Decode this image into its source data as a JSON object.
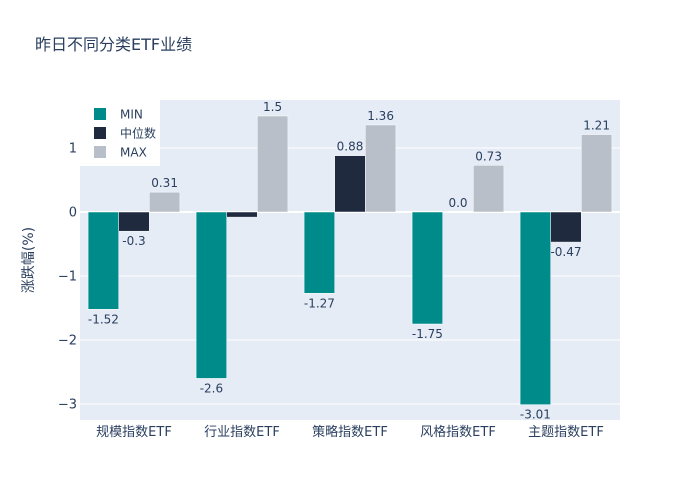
{
  "chart_data": {
    "type": "bar",
    "title": "昨日不同分类ETF业绩",
    "xlabel": "",
    "ylabel": "涨跌幅(%)",
    "categories": [
      "规模指数ETF",
      "行业指数ETF",
      "策略指数ETF",
      "风格指数ETF",
      "主题指数ETF"
    ],
    "series": [
      {
        "name": "MIN",
        "values": [
          -1.52,
          -2.6,
          -1.27,
          -1.75,
          -3.01
        ],
        "labels": [
          "-1.52",
          "-2.6",
          "-1.27",
          "-1.75",
          "-3.01"
        ],
        "color": "#008B8B"
      },
      {
        "name": "中位数",
        "values": [
          -0.3,
          -0.08,
          0.88,
          0.0,
          -0.47
        ],
        "labels": [
          "-0.3",
          "",
          "0.88",
          "0.0",
          "-0.47"
        ],
        "color": "#1F2A3E"
      },
      {
        "name": "MAX",
        "values": [
          0.31,
          1.5,
          1.36,
          0.73,
          1.21
        ],
        "labels": [
          "0.31",
          "1.5",
          "1.36",
          "0.73",
          "1.21"
        ],
        "color": "#B8BFC8"
      }
    ],
    "yticks": [
      1,
      0,
      -1,
      -2,
      -3
    ],
    "ytick_labels": [
      "1",
      "0",
      "−1",
      "−2",
      "−3"
    ],
    "ylim": [
      -3.25,
      1.75
    ],
    "grid": true,
    "legend": "top-left"
  }
}
